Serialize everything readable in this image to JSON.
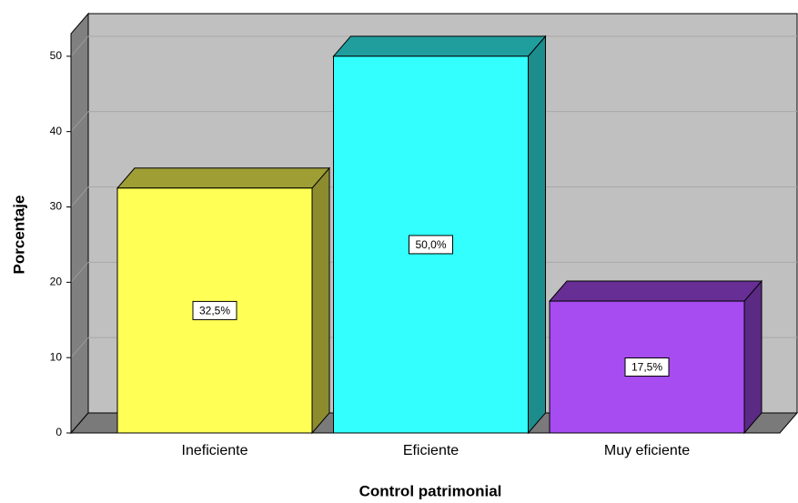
{
  "chart_data": {
    "type": "bar3d",
    "xlabel": "Control patrimonial",
    "ylabel": "Porcentaje",
    "categories": [
      "Ineficiente",
      "Eficiente",
      "Muy eficiente"
    ],
    "values": [
      32.5,
      50,
      17.5
    ],
    "value_labels": [
      "32,5%",
      "50,0%",
      "17,5%"
    ],
    "colors": [
      "#ffff55",
      "#33ffff",
      "#a64cf0"
    ],
    "ylim": [
      0,
      53
    ],
    "yticks": [
      0,
      10,
      20,
      30,
      40,
      50
    ],
    "grid": true
  }
}
